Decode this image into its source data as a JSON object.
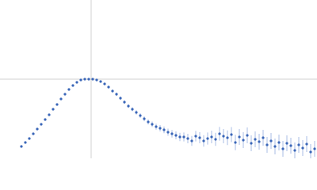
{
  "chart_data": {
    "type": "scatter",
    "x": [
      0.27,
      0.32,
      0.37,
      0.42,
      0.47,
      0.52,
      0.57,
      0.62,
      0.67,
      0.72,
      0.77,
      0.82,
      0.87,
      0.92,
      0.97,
      1.02,
      1.07,
      1.12,
      1.17,
      1.22,
      1.27,
      1.32,
      1.37,
      1.42,
      1.47,
      1.52,
      1.57,
      1.62,
      1.67,
      1.72,
      1.77,
      1.82,
      1.87,
      1.92,
      1.97,
      2.02,
      2.07,
      2.12,
      2.17,
      2.22,
      2.27,
      2.32,
      2.37,
      2.42,
      2.47,
      2.52,
      2.57,
      2.62,
      2.67,
      2.72,
      2.77,
      2.82,
      2.87,
      2.92,
      2.97,
      3.02,
      3.07,
      3.12,
      3.17,
      3.22,
      3.27,
      3.32,
      3.37,
      3.42,
      3.47,
      3.52,
      3.57,
      3.62,
      3.67,
      3.72,
      3.77,
      3.82,
      3.87,
      3.92,
      3.97
    ],
    "values": [
      0.15,
      0.2,
      0.25,
      0.31,
      0.37,
      0.43,
      0.49,
      0.55,
      0.62,
      0.68,
      0.75,
      0.81,
      0.87,
      0.92,
      0.96,
      0.99,
      1.0,
      1.0,
      1.0,
      0.99,
      0.97,
      0.94,
      0.9,
      0.85,
      0.81,
      0.76,
      0.71,
      0.66,
      0.62,
      0.58,
      0.54,
      0.5,
      0.46,
      0.43,
      0.4,
      0.38,
      0.36,
      0.33,
      0.31,
      0.29,
      0.27,
      0.27,
      0.25,
      0.22,
      0.28,
      0.26,
      0.22,
      0.25,
      0.27,
      0.24,
      0.31,
      0.28,
      0.26,
      0.3,
      0.2,
      0.27,
      0.23,
      0.29,
      0.19,
      0.24,
      0.21,
      0.26,
      0.17,
      0.22,
      0.15,
      0.2,
      0.12,
      0.19,
      0.16,
      0.1,
      0.17,
      0.13,
      0.18,
      0.08,
      0.12
    ],
    "errors": [
      0.005,
      0.005,
      0.005,
      0.006,
      0.006,
      0.006,
      0.007,
      0.007,
      0.008,
      0.008,
      0.009,
      0.009,
      0.01,
      0.01,
      0.01,
      0.011,
      0.012,
      0.012,
      0.013,
      0.014,
      0.015,
      0.016,
      0.017,
      0.018,
      0.02,
      0.021,
      0.022,
      0.024,
      0.025,
      0.027,
      0.029,
      0.031,
      0.033,
      0.035,
      0.037,
      0.04,
      0.042,
      0.045,
      0.048,
      0.05,
      0.053,
      0.056,
      0.06,
      0.063,
      0.066,
      0.07,
      0.073,
      0.076,
      0.08,
      0.083,
      0.086,
      0.09,
      0.092,
      0.095,
      0.098,
      0.1,
      0.1,
      0.1,
      0.1,
      0.1,
      0.1,
      0.1,
      0.1,
      0.1,
      0.1,
      0.1,
      0.1,
      0.1,
      0.1,
      0.1,
      0.1,
      0.1,
      0.1,
      0.1,
      0.1
    ],
    "color": "#3a66b8",
    "error_color": "#a9bde6",
    "xlim": [
      0,
      4
    ],
    "ylim": [
      0,
      2
    ],
    "reference_lines": {
      "x": 1.15,
      "y": 1
    }
  }
}
